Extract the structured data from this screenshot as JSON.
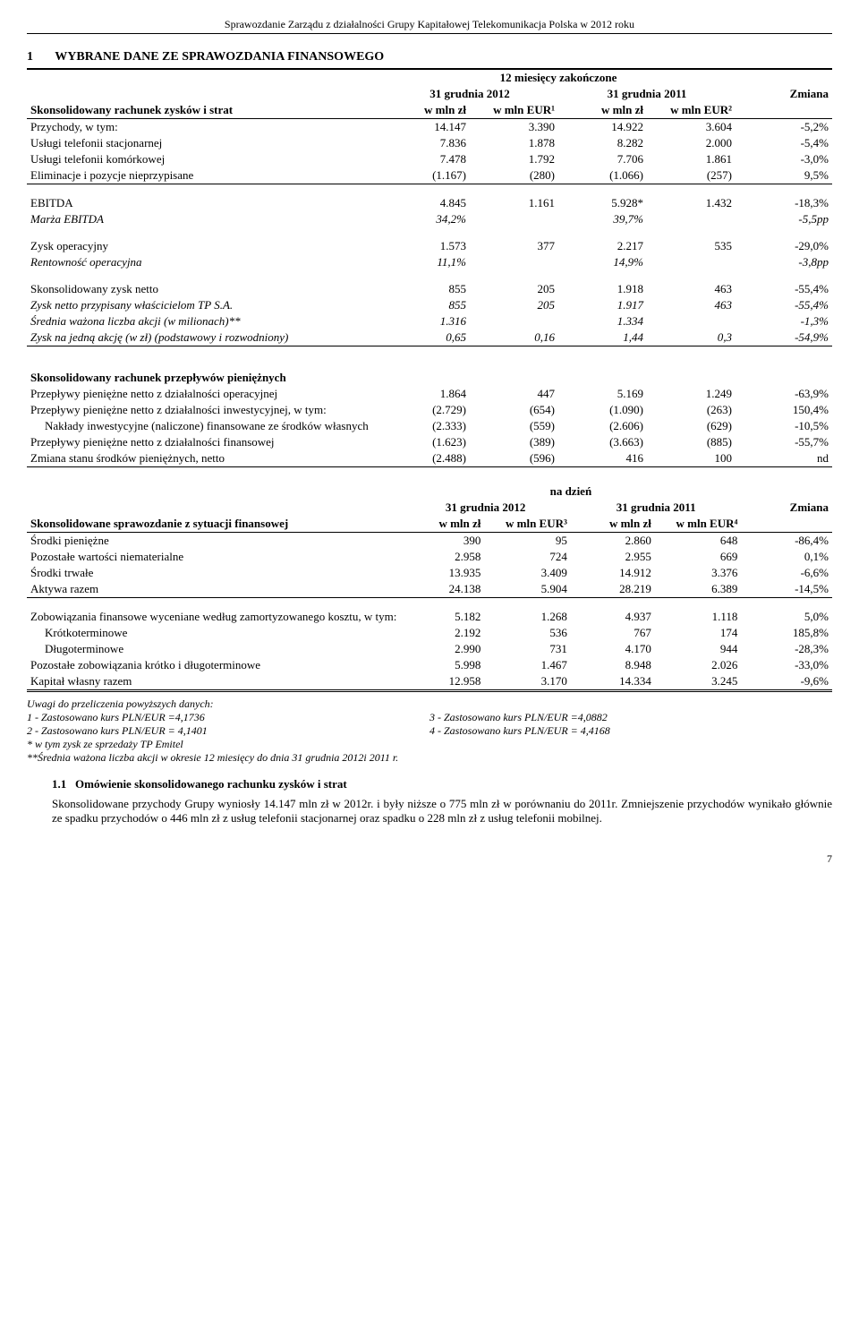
{
  "pageHeader": "Sprawozdanie Zarządu z działalności Grupy Kapitałowej Telekomunikacja Polska w 2012 roku",
  "title": {
    "num": "1",
    "text": "WYBRANE DANE ZE SPRAWOZDANIA FINANSOWEGO"
  },
  "periodHeader1": "12 miesięcy zakończone",
  "colGroup1": "31 grudnia 2012",
  "colGroup2": "31 grudnia 2011",
  "colZmiana": "Zmiana",
  "colHdr": {
    "pln": "w mln zł",
    "eur1": "w mln EUR¹",
    "eur2": "w mln EUR²",
    "eur3": "w mln EUR³",
    "eur4": "w mln EUR⁴"
  },
  "blockA": {
    "label": "Skonsolidowany rachunek zysków i strat",
    "rows": [
      {
        "label": "Przychody, w tym:",
        "v": [
          "14.147",
          "3.390",
          "14.922",
          "3.604",
          "-5,2%"
        ]
      },
      {
        "label": "Usługi telefonii stacjonarnej",
        "v": [
          "7.836",
          "1.878",
          "8.282",
          "2.000",
          "-5,4%"
        ]
      },
      {
        "label": "Usługi telefonii komórkowej",
        "v": [
          "7.478",
          "1.792",
          "7.706",
          "1.861",
          "-3,0%"
        ]
      },
      {
        "label": "Eliminacje i pozycje nieprzypisane",
        "v": [
          "(1.167)",
          "(280)",
          "(1.066)",
          "(257)",
          "9,5%"
        ]
      }
    ]
  },
  "blockB": [
    {
      "label": "EBITDA",
      "v": [
        "4.845",
        "1.161",
        "5.928*",
        "1.432",
        "-18,3%"
      ]
    },
    {
      "label": "Marża EBITDA",
      "italic": true,
      "v": [
        "34,2%",
        "",
        "39,7%",
        "",
        "-5,5pp"
      ]
    }
  ],
  "blockC": [
    {
      "label": "Zysk operacyjny",
      "v": [
        "1.573",
        "377",
        "2.217",
        "535",
        "-29,0%"
      ]
    },
    {
      "label": "Rentowność operacyjna",
      "italic": true,
      "v": [
        "11,1%",
        "",
        "14,9%",
        "",
        "-3,8pp"
      ]
    }
  ],
  "blockD": [
    {
      "label": "Skonsolidowany zysk netto",
      "v": [
        "855",
        "205",
        "1.918",
        "463",
        "-55,4%"
      ]
    },
    {
      "label": "Zysk netto przypisany właścicielom TP S.A.",
      "italic": true,
      "v": [
        "855",
        "205",
        "1.917",
        "463",
        "-55,4%"
      ]
    },
    {
      "label": "Średnia ważona liczba akcji (w milionach)**",
      "italic": true,
      "v": [
        "1.316",
        "",
        "1.334",
        "",
        "-1,3%"
      ]
    },
    {
      "label": "Zysk na jedną akcję (w zł) (podstawowy i rozwodniony)",
      "italic": true,
      "v": [
        "0,65",
        "0,16",
        "1,44",
        "0,3",
        "-54,9%"
      ]
    }
  ],
  "blockE": {
    "label": "Skonsolidowany rachunek przepływów pieniężnych",
    "rows": [
      {
        "label": "Przepływy pieniężne netto z działalności operacyjnej",
        "v": [
          "1.864",
          "447",
          "5.169",
          "1.249",
          "-63,9%"
        ]
      },
      {
        "label": "Przepływy pieniężne netto z działalności inwestycyjnej, w tym:",
        "v": [
          "(2.729)",
          "(654)",
          "(1.090)",
          "(263)",
          "150,4%"
        ]
      },
      {
        "label": "Nakłady inwestycyjne (naliczone) finansowane ze środków własnych",
        "indent": true,
        "v": [
          "(2.333)",
          "(559)",
          "(2.606)",
          "(629)",
          "-10,5%"
        ]
      },
      {
        "label": "Przepływy pieniężne netto z działalności finansowej",
        "v": [
          "(1.623)",
          "(389)",
          "(3.663)",
          "(885)",
          "-55,7%"
        ]
      },
      {
        "label": "Zmiana stanu środków pieniężnych, netto",
        "v": [
          "(2.488)",
          "(596)",
          "416",
          "100",
          "nd"
        ]
      }
    ]
  },
  "periodHeader2": "na dzień",
  "blockF": {
    "label": "Skonsolidowane sprawozdanie z sytuacji finansowej",
    "rows": [
      {
        "label": "Środki pieniężne",
        "v": [
          "390",
          "95",
          "2.860",
          "648",
          "-86,4%"
        ]
      },
      {
        "label": "Pozostałe wartości niematerialne",
        "v": [
          "2.958",
          "724",
          "2.955",
          "669",
          "0,1%"
        ]
      },
      {
        "label": "Środki trwałe",
        "v": [
          "13.935",
          "3.409",
          "14.912",
          "3.376",
          "-6,6%"
        ]
      },
      {
        "label": "Aktywa razem",
        "v": [
          "24.138",
          "5.904",
          "28.219",
          "6.389",
          "-14,5%"
        ]
      }
    ]
  },
  "blockG": [
    {
      "label": "Zobowiązania finansowe wyceniane według zamortyzowanego kosztu, w tym:",
      "v": [
        "5.182",
        "1.268",
        "4.937",
        "1.118",
        "5,0%"
      ]
    },
    {
      "label": "Krótkoterminowe",
      "indent": true,
      "v": [
        "2.192",
        "536",
        "767",
        "174",
        "185,8%"
      ]
    },
    {
      "label": "Długoterminowe",
      "indent": true,
      "v": [
        "2.990",
        "731",
        "4.170",
        "944",
        "-28,3%"
      ]
    },
    {
      "label": "Pozostałe zobowiązania krótko i długoterminowe",
      "v": [
        "5.998",
        "1.467",
        "8.948",
        "2.026",
        "-33,0%"
      ]
    },
    {
      "label": "Kapitał własny razem",
      "v": [
        "12.958",
        "3.170",
        "14.334",
        "3.245",
        "-9,6%"
      ]
    }
  ],
  "notes": {
    "header": "Uwagi do przeliczenia powyższych danych:",
    "n1": "1 - Zastosowano kurs PLN/EUR =4,1736",
    "n2": "2 - Zastosowano kurs PLN/EUR = 4,1401",
    "n3": "3 - Zastosowano kurs PLN/EUR =4,0882",
    "n4": "4 - Zastosowano kurs PLN/EUR =  4,4168",
    "n5": "* w tym zysk ze sprzedaży TP Emitel",
    "n6": "**Średnia ważona liczba akcji w okresie 12  miesięcy do dnia 31 grudnia 2012i 2011 r."
  },
  "subsection": {
    "num": "1.1",
    "title": "Omówienie skonsolidowanego rachunku zysków i strat"
  },
  "bodyText": "Skonsolidowane przychody Grupy wyniosły 14.147 mln zł w 2012r. i były niższe o 775 mln zł w porównaniu do 2011r. Zmniejszenie przychodów wynikało głównie ze spadku przychodów o 446 mln zł z usług telefonii stacjonarnej oraz spadku o 228 mln zł z usług telefonii mobilnej.",
  "pageNum": "7"
}
